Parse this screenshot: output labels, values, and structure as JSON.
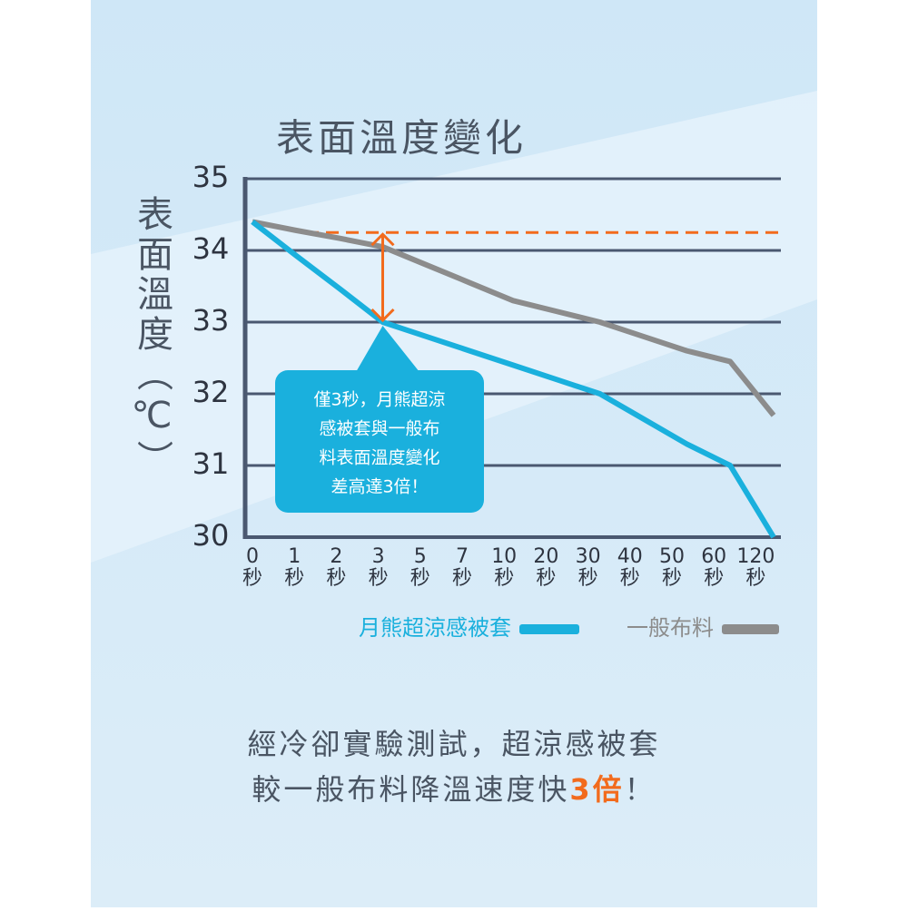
{
  "chart_data": {
    "type": "line",
    "title": "表面溫度變化",
    "y_label": "表面溫度（℃）",
    "x_unit": "秒",
    "categories": [
      "0",
      "1",
      "2",
      "3",
      "5",
      "7",
      "10",
      "20",
      "30",
      "40",
      "50",
      "60",
      "120"
    ],
    "series": [
      {
        "name": "月熊超涼感被套",
        "color": "#1ab0dd",
        "values": [
          34.4,
          33.93,
          33.47,
          33.0,
          32.8,
          32.6,
          32.4,
          32.2,
          32.0,
          31.65,
          31.3,
          31.0,
          30.0
        ]
      },
      {
        "name": "一般布料",
        "color": "#8c8c8c",
        "values": [
          34.4,
          34.28,
          34.17,
          34.05,
          33.8,
          33.55,
          33.3,
          33.15,
          33.0,
          32.8,
          32.6,
          32.45,
          31.7
        ]
      }
    ],
    "ylim": [
      30,
      35
    ],
    "yticks": [
      30,
      31,
      32,
      33,
      34,
      35
    ],
    "grid": true,
    "reference_line": {
      "value": 34.25,
      "color": "#f26b1d"
    },
    "annotation": [
      "僅3秒，月熊超涼",
      "感被套與一般布",
      "料表面溫度變化",
      "差高達3倍！"
    ]
  },
  "caption": {
    "line1": "經冷卻實驗測試，超涼感被套",
    "line2": [
      "較一般布料降溫速度快",
      "3倍",
      "！"
    ]
  }
}
